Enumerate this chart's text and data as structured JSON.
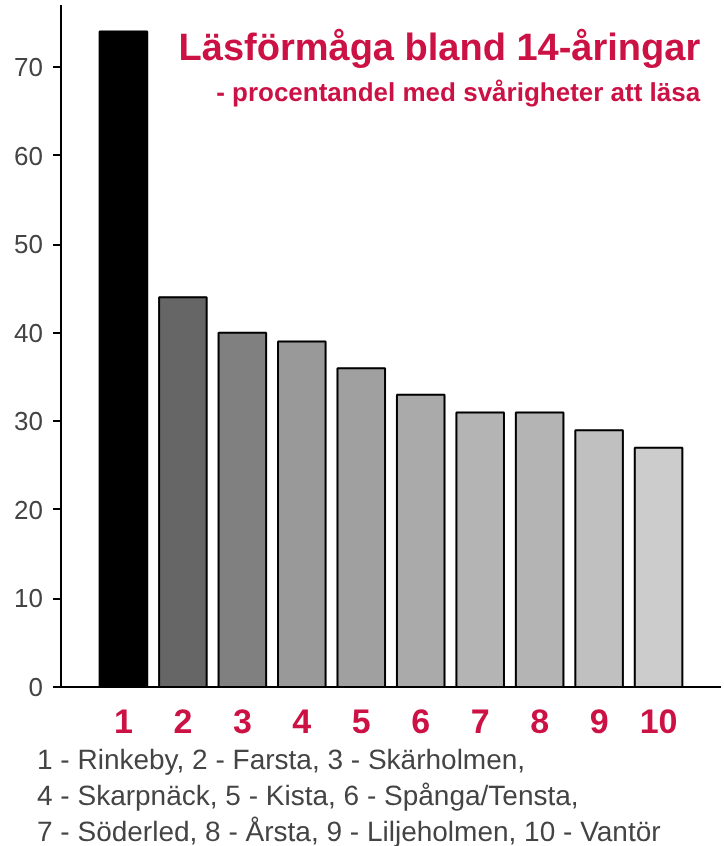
{
  "chart_data": {
    "type": "bar",
    "title": "Läsförmåga bland 14-åringar",
    "subtitle": "- procentandel med svårigheter att läsa",
    "categories": [
      "1",
      "2",
      "3",
      "4",
      "5",
      "6",
      "7",
      "8",
      "9",
      "10"
    ],
    "values": [
      74,
      44,
      40,
      39,
      36,
      33,
      31,
      31,
      29,
      27
    ],
    "colors": [
      "#000000",
      "#666666",
      "#808080",
      "#999999",
      "#a0a0a0",
      "#aaaaaa",
      "#b4b4b4",
      "#b4b4b4",
      "#c0c0c0",
      "#cccccc"
    ],
    "ylim": [
      0,
      77
    ],
    "yticks": [
      0,
      10,
      20,
      30,
      40,
      50,
      60,
      70
    ],
    "grid": false,
    "annotations": [
      "1 - Rinkeby, 2 - Farsta, 3 - Skärholmen,",
      "4 - Skarpnäck, 5 - Kista, 6 - Spånga/Tensta,",
      "7 - Söderled, 8 - Årsta, 9 - Liljeholmen, 10 - Vantör"
    ]
  }
}
